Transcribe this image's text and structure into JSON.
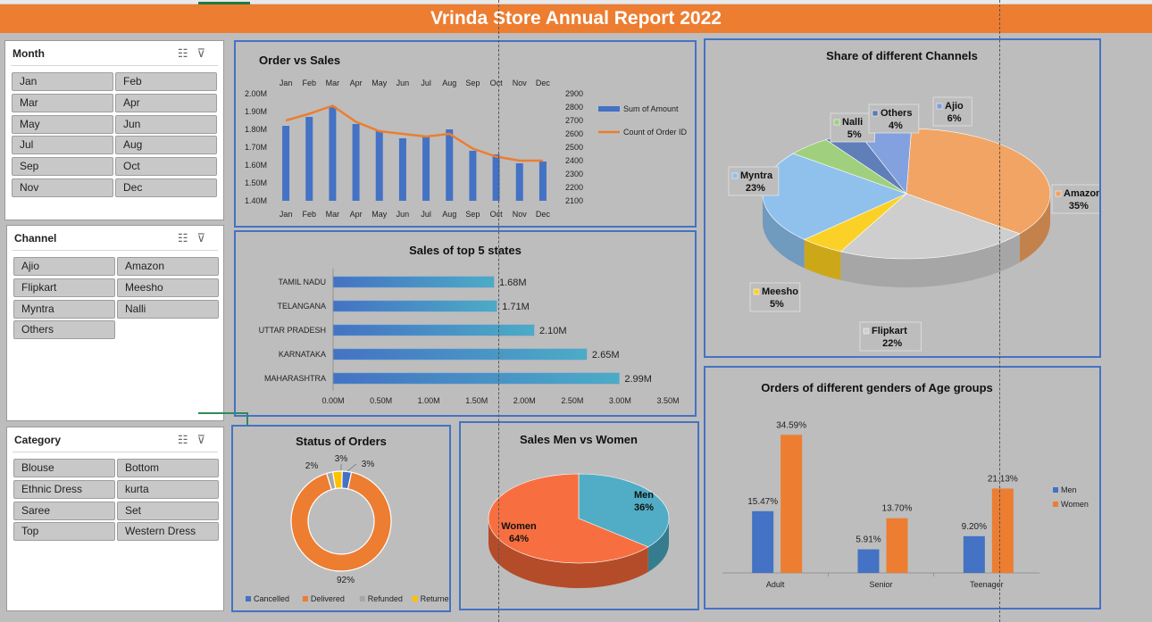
{
  "title": "Vrinda Store Annual Report 2022",
  "slicers": {
    "month": {
      "header": "Month",
      "items": [
        "Jan",
        "Feb",
        "Mar",
        "Apr",
        "May",
        "Jun",
        "Jul",
        "Aug",
        "Sep",
        "Oct",
        "Nov",
        "Dec"
      ]
    },
    "channel": {
      "header": "Channel",
      "items": [
        "Ajio",
        "Amazon",
        "Flipkart",
        "Meesho",
        "Myntra",
        "Nalli",
        "Others"
      ]
    },
    "category": {
      "header": "Category",
      "items": [
        "Blouse",
        "Bottom",
        "Ethnic Dress",
        "kurta",
        "Saree",
        "Set",
        "Top",
        "Western Dress"
      ]
    }
  },
  "icons": {
    "multiselect": "multi-select-icon",
    "clearfilter": "clear-filter-icon"
  },
  "colors": {
    "blue": "#4472c4",
    "orange": "#ed7d31",
    "gray": "#a5a5a5",
    "yellow": "#ffc000",
    "green": "#70ad47",
    "darkblue": "#264478",
    "lightblue": "#5b9bd5",
    "title_bar": "#ed7d31"
  },
  "chart_data": [
    {
      "id": "order_vs_sales",
      "type": "bar",
      "title": "Order vs Sales",
      "categories": [
        "Jan",
        "Feb",
        "Mar",
        "Apr",
        "May",
        "Jun",
        "Jul",
        "Aug",
        "Sep",
        "Oct",
        "Nov",
        "Dec"
      ],
      "series": [
        {
          "name": "Sum of Amount",
          "type": "bar",
          "axis": "left",
          "values": [
            1.82,
            1.87,
            1.93,
            1.83,
            1.79,
            1.75,
            1.76,
            1.8,
            1.68,
            1.66,
            1.61,
            1.62
          ]
        },
        {
          "name": "Count of Order ID",
          "type": "line",
          "axis": "right",
          "values": [
            2700,
            2750,
            2810,
            2690,
            2620,
            2600,
            2580,
            2600,
            2490,
            2430,
            2400,
            2400
          ]
        }
      ],
      "ylabels_left": [
        "2.00M",
        "1.90M",
        "1.80M",
        "1.70M",
        "1.60M",
        "1.50M",
        "1.40M"
      ],
      "ylabels_right": [
        "2900",
        "2800",
        "2700",
        "2600",
        "2500",
        "2400",
        "2300",
        "2200",
        "2100"
      ],
      "ylim_left": [
        1.4,
        2.0
      ],
      "ylim_right": [
        2100,
        2900
      ],
      "legend": "right"
    },
    {
      "id": "top_states",
      "type": "bar",
      "orientation": "horizontal",
      "title": "Sales of top 5 states",
      "categories": [
        "TAMIL NADU",
        "TELANGANA",
        "UTTAR PRADESH",
        "KARNATAKA",
        "MAHARASHTRA"
      ],
      "values": [
        1.68,
        1.71,
        2.1,
        2.65,
        2.99
      ],
      "labels": [
        "1.68M",
        "1.71M",
        "2.10M",
        "2.65M",
        "2.99M"
      ],
      "xlabels": [
        "0.00M",
        "0.50M",
        "1.00M",
        "1.50M",
        "2.00M",
        "2.50M",
        "3.00M",
        "3.50M"
      ],
      "xlim": [
        0,
        3.5
      ]
    },
    {
      "id": "channels",
      "type": "pie",
      "title": "Share of different Channels",
      "slices": [
        {
          "label": "Ajio",
          "value": 6,
          "pct": "6%",
          "color": "#5b9bd5"
        },
        {
          "label": "Amazon",
          "value": 35,
          "pct": "35%",
          "color": "#ed7d31"
        },
        {
          "label": "Flipkart",
          "value": 22,
          "pct": "22%",
          "color": "#a5a5a5"
        },
        {
          "label": "Meesho",
          "value": 5,
          "pct": "5%",
          "color": "#ffc000"
        },
        {
          "label": "Myntra",
          "value": 23,
          "pct": "23%",
          "color": "#5b9bd5"
        },
        {
          "label": "Nalli",
          "value": 5,
          "pct": "5%",
          "color": "#70ad47"
        },
        {
          "label": "Others",
          "value": 4,
          "pct": "4%",
          "color": "#264478"
        }
      ]
    },
    {
      "id": "status",
      "type": "pie",
      "subtype": "donut",
      "title": "Status of  Orders",
      "slices": [
        {
          "label": "Cancelled",
          "value": 3,
          "pct": "3%",
          "color": "#4472c4"
        },
        {
          "label": "Delivered",
          "value": 92,
          "pct": "92%",
          "color": "#ed7d31"
        },
        {
          "label": "Refunded",
          "value": 2,
          "pct": "2%",
          "color": "#a5a5a5"
        },
        {
          "label": "Returned",
          "value": 3,
          "pct": "3%",
          "color": "#ffc000"
        }
      ],
      "legend": "bottom"
    },
    {
      "id": "gender",
      "type": "pie",
      "title": "Sales Men vs Women",
      "slices": [
        {
          "label": "Men",
          "value": 36,
          "pct": "36%",
          "color": "#4bacc6"
        },
        {
          "label": "Women",
          "value": 64,
          "pct": "64%",
          "color": "#f96432"
        }
      ]
    },
    {
      "id": "age_groups",
      "type": "bar",
      "title": "Orders of different genders of Age groups",
      "categories": [
        "Adult",
        "Senior",
        "Teenager"
      ],
      "series": [
        {
          "name": "Men",
          "values": [
            15.47,
            5.91,
            9.2
          ],
          "labels": [
            "15.47%",
            "5.91%",
            "9.20%"
          ]
        },
        {
          "name": "Women",
          "values": [
            34.59,
            13.7,
            21.13
          ],
          "labels": [
            "34.59%",
            "13.70%",
            "21.13%"
          ]
        }
      ],
      "legend": "right"
    }
  ]
}
